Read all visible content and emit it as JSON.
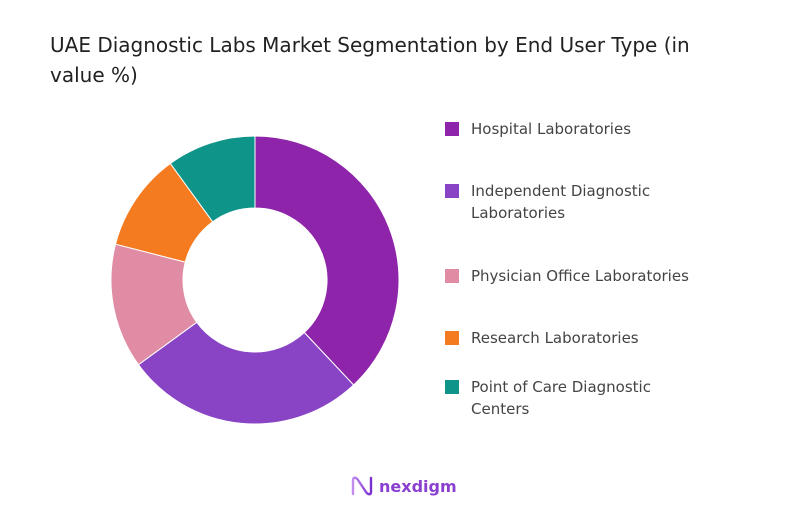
{
  "chart_data": {
    "type": "pie",
    "donut": true,
    "title": "UAE Diagnostic Labs Market Segmentation by End User Type (in value %)",
    "categories": [
      "Hospital Laboratories",
      "Independent Diagnostic Laboratories",
      "Physician Office Laboratories",
      "Research Laboratories",
      "Point of Care Diagnostic Centers"
    ],
    "values": [
      38,
      27,
      14,
      11,
      10
    ],
    "colors": [
      "#8E24AA",
      "#8844C4",
      "#E08CA4",
      "#F47B20",
      "#0E9488"
    ],
    "legend_position": "right"
  },
  "brand": {
    "name": "nexdigm"
  }
}
